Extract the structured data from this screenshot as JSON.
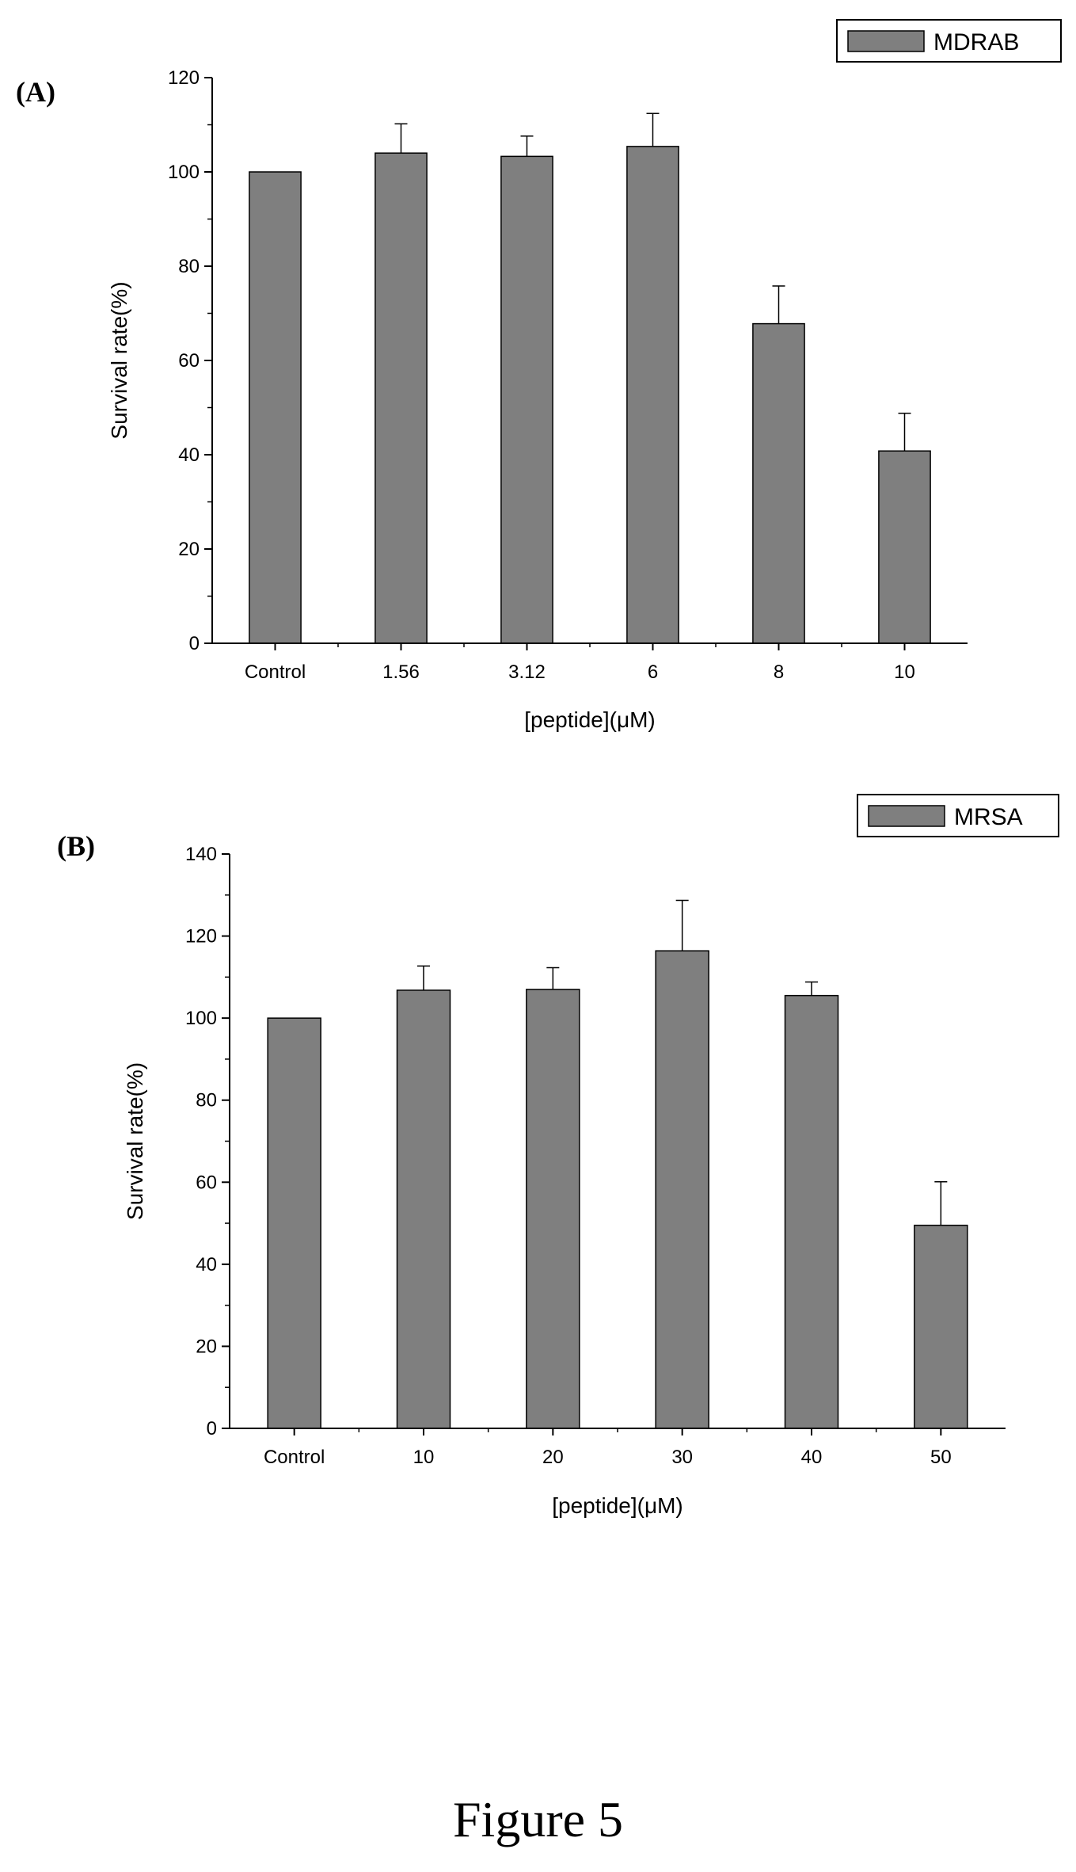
{
  "figure_caption": "Figure 5",
  "chart_data": [
    {
      "type": "bar",
      "panel_label": "(A)",
      "categories": [
        "Control",
        "1.56",
        "3.12",
        "6",
        "8",
        "10"
      ],
      "series": [
        {
          "name": "MDRAB",
          "values": [
            100,
            104,
            103.3,
            105.4,
            67.8,
            40.8
          ],
          "error_upper": [
            0,
            6.2,
            4.3,
            7.0,
            8.0,
            8.0
          ]
        }
      ],
      "xlabel": "[peptide](μM)",
      "ylabel": "Survival rate(%)",
      "ylim": [
        0,
        120
      ],
      "yticks": [
        0,
        20,
        40,
        60,
        80,
        100,
        120
      ],
      "legend_position": "top-right",
      "bar_color": "#7f7f7f",
      "grid": false
    },
    {
      "type": "bar",
      "panel_label": "(B)",
      "categories": [
        "Control",
        "10",
        "20",
        "30",
        "40",
        "50"
      ],
      "series": [
        {
          "name": "MRSA",
          "values": [
            100,
            106.8,
            107,
            116.4,
            105.5,
            49.5
          ],
          "error_upper": [
            0,
            5.9,
            5.3,
            12.3,
            3.3,
            10.6
          ]
        }
      ],
      "xlabel": "[peptide](μM)",
      "ylabel": "Survival rate(%)",
      "ylim": [
        0,
        140
      ],
      "yticks": [
        0,
        20,
        40,
        60,
        80,
        100,
        120,
        140
      ],
      "legend_position": "top-right",
      "bar_color": "#7f7f7f",
      "grid": false
    }
  ]
}
